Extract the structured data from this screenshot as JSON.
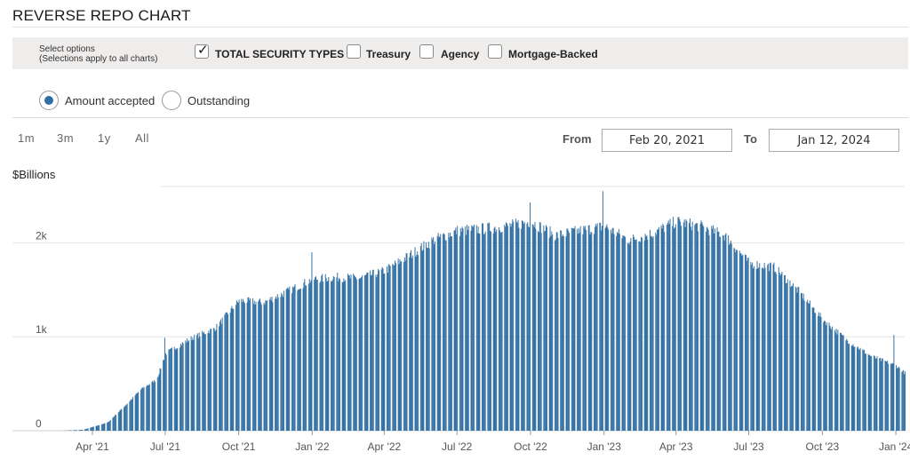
{
  "title": "REVERSE REPO CHART",
  "options": {
    "note_line1": "Select options",
    "note_line2": "(Selections apply to all charts)",
    "checkboxes": [
      {
        "label": "TOTAL SECURITY TYPES",
        "checked": true
      },
      {
        "label": "Treasury",
        "checked": false
      },
      {
        "label": "Agency",
        "checked": false
      },
      {
        "label": "Mortgage-Backed",
        "checked": false
      }
    ]
  },
  "radios": [
    {
      "label": "Amount accepted",
      "selected": true
    },
    {
      "label": "Outstanding",
      "selected": false
    }
  ],
  "range_buttons": [
    "1m",
    "3m",
    "1y",
    "All"
  ],
  "date_range": {
    "from_label": "From",
    "from_value": "Feb 20, 2021",
    "to_label": "To",
    "to_value": "Jan 12, 2024"
  },
  "colors": {
    "bar": "#2f6ea3",
    "radio_selected": "#2f6ea3",
    "options_bg": "#efedec"
  },
  "chart_data": {
    "type": "bar",
    "ylabel": "$Billions",
    "ylim": [
      0,
      2600
    ],
    "yticks": [
      {
        "value": 0,
        "label": "0"
      },
      {
        "value": 1000,
        "label": "1k"
      },
      {
        "value": 2000,
        "label": "2k"
      }
    ],
    "x_range": [
      "2021-02-20",
      "2024-01-12"
    ],
    "xticks": [
      {
        "date": "2021-04-01",
        "label": "Apr '21"
      },
      {
        "date": "2021-07-01",
        "label": "Jul '21"
      },
      {
        "date": "2021-10-01",
        "label": "Oct '21"
      },
      {
        "date": "2022-01-01",
        "label": "Jan '22"
      },
      {
        "date": "2022-04-01",
        "label": "Apr '22"
      },
      {
        "date": "2022-07-01",
        "label": "Jul '22"
      },
      {
        "date": "2022-10-01",
        "label": "Oct '22"
      },
      {
        "date": "2023-01-01",
        "label": "Jan '23"
      },
      {
        "date": "2023-04-01",
        "label": "Apr '23"
      },
      {
        "date": "2023-07-01",
        "label": "Jul '23"
      },
      {
        "date": "2023-10-01",
        "label": "Oct '23"
      },
      {
        "date": "2024-01-01",
        "label": "Jan '24"
      }
    ],
    "grid": true,
    "series": [
      {
        "values_approx_weekly": [
          {
            "date": "2021-02-20",
            "value": 0
          },
          {
            "date": "2021-03-20",
            "value": 10
          },
          {
            "date": "2021-04-01",
            "value": 40
          },
          {
            "date": "2021-04-20",
            "value": 90
          },
          {
            "date": "2021-05-15",
            "value": 300
          },
          {
            "date": "2021-06-01",
            "value": 450
          },
          {
            "date": "2021-06-20",
            "value": 550
          },
          {
            "date": "2021-07-01",
            "value": 830
          },
          {
            "date": "2021-08-01",
            "value": 990
          },
          {
            "date": "2021-09-01",
            "value": 1100
          },
          {
            "date": "2021-10-01",
            "value": 1400
          },
          {
            "date": "2021-11-01",
            "value": 1380
          },
          {
            "date": "2021-12-01",
            "value": 1500
          },
          {
            "date": "2022-01-01",
            "value": 1630
          },
          {
            "date": "2022-02-01",
            "value": 1650
          },
          {
            "date": "2022-03-01",
            "value": 1640
          },
          {
            "date": "2022-04-01",
            "value": 1720
          },
          {
            "date": "2022-05-01",
            "value": 1880
          },
          {
            "date": "2022-06-01",
            "value": 2050
          },
          {
            "date": "2022-07-01",
            "value": 2150
          },
          {
            "date": "2022-08-01",
            "value": 2170
          },
          {
            "date": "2022-09-01",
            "value": 2200
          },
          {
            "date": "2022-10-01",
            "value": 2250
          },
          {
            "date": "2022-11-01",
            "value": 2100
          },
          {
            "date": "2022-12-01",
            "value": 2150
          },
          {
            "date": "2023-01-01",
            "value": 2200
          },
          {
            "date": "2023-02-01",
            "value": 2050
          },
          {
            "date": "2023-03-01",
            "value": 2120
          },
          {
            "date": "2023-04-01",
            "value": 2250
          },
          {
            "date": "2023-05-01",
            "value": 2200
          },
          {
            "date": "2023-06-01",
            "value": 2100
          },
          {
            "date": "2023-07-01",
            "value": 1800
          },
          {
            "date": "2023-08-01",
            "value": 1760
          },
          {
            "date": "2023-09-01",
            "value": 1500
          },
          {
            "date": "2023-10-01",
            "value": 1200
          },
          {
            "date": "2023-11-01",
            "value": 970
          },
          {
            "date": "2023-12-01",
            "value": 800
          },
          {
            "date": "2024-01-01",
            "value": 700
          },
          {
            "date": "2024-01-12",
            "value": 620
          }
        ],
        "spikes": [
          {
            "date": "2021-06-30",
            "value": 990
          },
          {
            "date": "2021-12-31",
            "value": 1900
          },
          {
            "date": "2022-09-30",
            "value": 2430
          },
          {
            "date": "2022-12-30",
            "value": 2550
          },
          {
            "date": "2023-12-29",
            "value": 1020
          }
        ]
      }
    ]
  }
}
